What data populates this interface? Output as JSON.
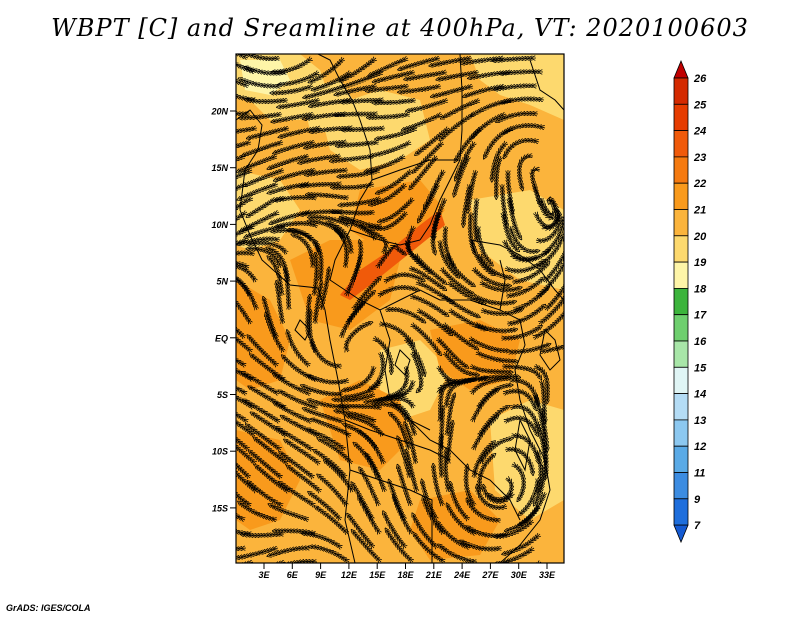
{
  "title": "WBPT [C] and Sreamline at 400hPa, VT: 2020100603",
  "footer": "GrADS: IGES/COLA",
  "map": {
    "lat_labels": [
      "20N",
      "15N",
      "10N",
      "5N",
      "EQ",
      "5S",
      "10S",
      "15S"
    ],
    "lon_labels": [
      "3E",
      "6E",
      "9E",
      "12E",
      "15E",
      "18E",
      "21E",
      "24E",
      "27E",
      "30E",
      "33E"
    ]
  },
  "colorbar": {
    "labels": [
      "26",
      "25",
      "24",
      "23",
      "22",
      "21",
      "20",
      "19",
      "18",
      "17",
      "16",
      "15",
      "14",
      "13",
      "12",
      "11",
      "9",
      "7"
    ],
    "colors": [
      "#c00000",
      "#d42a00",
      "#e63c00",
      "#f05a0a",
      "#f57a10",
      "#f99a1c",
      "#fbb43c",
      "#fdd96e",
      "#fef5a8",
      "#3cb43c",
      "#6ecf6e",
      "#a8e6a8",
      "#e0f5f5",
      "#b4dcf5",
      "#8cc8f0",
      "#5aaae6",
      "#3c8ce1",
      "#1e6edc",
      "#145ad2"
    ]
  }
}
